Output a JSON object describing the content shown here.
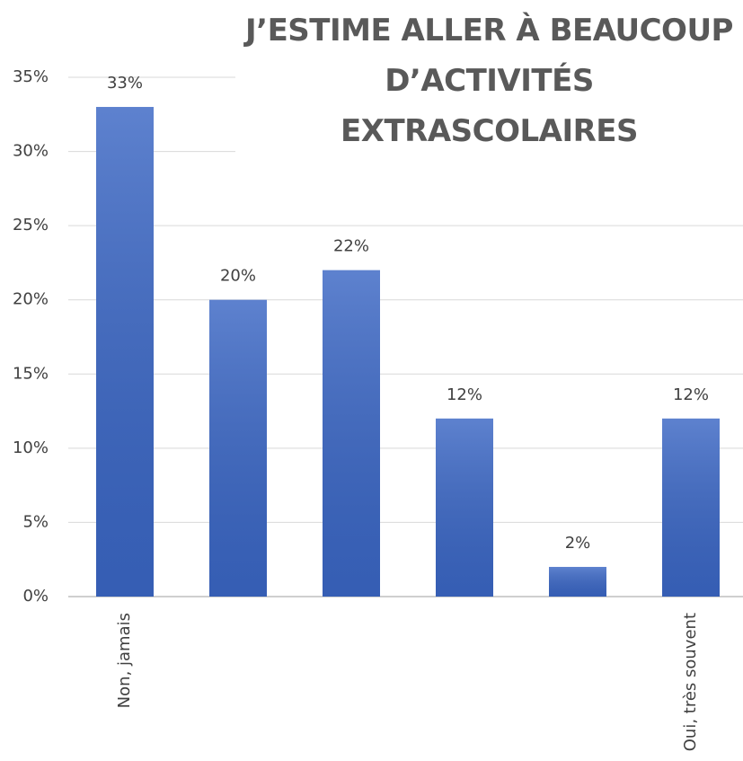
{
  "chart_data": {
    "type": "bar",
    "title": "J’ESTIME ALLER À BEAUCOUP D’ACTIVITÉS EXTRASCOLAIRES",
    "categories": [
      "Non, jamais",
      null,
      null,
      null,
      null,
      "Oui, très souvent"
    ],
    "values": [
      33,
      20,
      22,
      12,
      2,
      12
    ],
    "value_labels": [
      "33%",
      "20%",
      "22%",
      "12%",
      "2%",
      "12%"
    ],
    "color": "#3a66c4",
    "ylim": [
      0,
      35
    ],
    "yticks": [
      {
        "value": 0,
        "label": "0%"
      },
      {
        "value": 5,
        "label": "5%"
      },
      {
        "value": 10,
        "label": "10%"
      },
      {
        "value": 15,
        "label": "15%"
      },
      {
        "value": 20,
        "label": "20%"
      },
      {
        "value": 25,
        "label": "25%"
      },
      {
        "value": 30,
        "label": "30%"
      },
      {
        "value": 35,
        "label": "35%"
      }
    ],
    "grid": true
  }
}
